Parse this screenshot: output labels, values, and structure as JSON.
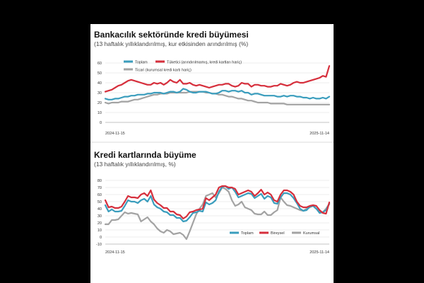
{
  "colors": {
    "background": "#000000",
    "panel": "#ffffff",
    "grid": "#d9d9d9",
    "toplam": "#3a9dbd",
    "tuketici": "#d62f3c",
    "ticari": "#a3a3a3",
    "text": "#111111",
    "muted": "#555555"
  },
  "chart_data": [
    {
      "type": "line",
      "title": "Bankacılık sektöründe kredi büyümesi",
      "subtitle": "(13 haftalık yıllıklandırılmış, kur etkisinden arındırılmış (%)",
      "x_labels": [
        "2024-11-15",
        "2025-11-14"
      ],
      "ylim": [
        0,
        60
      ],
      "yticks": [
        "0",
        "10",
        "20",
        "30",
        "40",
        "50",
        "60"
      ],
      "grid": true,
      "legend": "top-left",
      "series": [
        {
          "name": "Toplam",
          "color": "#3a9dbd",
          "values": [
            24,
            23,
            23,
            24,
            24,
            25,
            26,
            26,
            27,
            27,
            28,
            28,
            28,
            29,
            29,
            30,
            30,
            30,
            29,
            30,
            31,
            31,
            30,
            31,
            34,
            33,
            31,
            30,
            30,
            31,
            31,
            31,
            30,
            29,
            29,
            30,
            32,
            32,
            31,
            32,
            32,
            31,
            32,
            30,
            30,
            28,
            29,
            29,
            28,
            27,
            27,
            27,
            27,
            26,
            26,
            27,
            26,
            27,
            27,
            26,
            26,
            25,
            25,
            24,
            25,
            24,
            24,
            25,
            24,
            26
          ]
        },
        {
          "name": "Tüketici (arındırılmamış, kredi kartları hariç)",
          "color": "#d62f3c",
          "values": [
            31,
            32,
            33,
            35,
            37,
            38,
            40,
            42,
            43,
            42,
            41,
            40,
            39,
            38,
            38,
            40,
            39,
            40,
            38,
            40,
            43,
            41,
            40,
            43,
            39,
            39,
            40,
            38,
            37,
            38,
            37,
            36,
            35,
            36,
            37,
            38,
            38,
            39,
            39,
            37,
            36,
            37,
            40,
            39,
            39,
            36,
            38,
            38,
            37,
            37,
            36,
            36,
            37,
            37,
            39,
            38,
            37,
            38,
            40,
            41,
            40,
            40,
            41,
            42,
            43,
            44,
            45,
            47,
            46,
            57
          ]
        },
        {
          "name": "Ticari (kurumsal kredi kartı hariç)",
          "color": "#a3a3a3",
          "values": [
            20,
            19,
            20,
            20,
            20,
            21,
            21,
            21,
            22,
            23,
            23,
            24,
            25,
            26,
            27,
            28,
            28,
            29,
            29,
            29,
            30,
            30,
            30,
            30,
            30,
            30,
            31,
            31,
            31,
            31,
            31,
            30,
            30,
            29,
            29,
            28,
            28,
            27,
            26,
            26,
            25,
            24,
            24,
            23,
            22,
            22,
            21,
            20,
            20,
            20,
            20,
            19,
            19,
            19,
            19,
            19,
            18,
            18,
            18,
            18,
            18,
            18,
            18,
            18,
            18,
            18,
            18,
            18,
            18,
            18
          ]
        }
      ]
    },
    {
      "type": "line",
      "title": "Kredi kartlarında büyüme",
      "subtitle": "(13 haftalık yıllıklandırılmış, %)",
      "x_labels": [
        "2024-11-15",
        "2025-11-14"
      ],
      "ylim": [
        -10,
        80
      ],
      "yticks": [
        "-10",
        "0",
        "10",
        "20",
        "30",
        "40",
        "50",
        "60",
        "70",
        "80"
      ],
      "grid": true,
      "legend": "bottom-right",
      "series": [
        {
          "name": "Toplam",
          "color": "#3a9dbd",
          "values": [
            45,
            36,
            39,
            36,
            36,
            37,
            44,
            52,
            50,
            50,
            48,
            52,
            54,
            50,
            58,
            46,
            42,
            40,
            36,
            35,
            31,
            31,
            27,
            27,
            22,
            23,
            28,
            34,
            35,
            37,
            36,
            49,
            46,
            48,
            52,
            64,
            71,
            72,
            68,
            70,
            64,
            56,
            58,
            60,
            62,
            61,
            55,
            58,
            61,
            54,
            58,
            56,
            48,
            47,
            56,
            62,
            62,
            60,
            55,
            48,
            40,
            37,
            38,
            43,
            44,
            40,
            34,
            35,
            38,
            47
          ]
        },
        {
          "name": "Bireysel",
          "color": "#d62f3c",
          "values": [
            52,
            42,
            43,
            41,
            41,
            43,
            50,
            58,
            56,
            56,
            55,
            60,
            62,
            58,
            66,
            53,
            48,
            45,
            41,
            41,
            36,
            36,
            32,
            31,
            26,
            29,
            35,
            36,
            38,
            39,
            40,
            55,
            52,
            56,
            60,
            70,
            72,
            72,
            70,
            70,
            68,
            60,
            62,
            64,
            66,
            64,
            58,
            62,
            67,
            60,
            63,
            60,
            52,
            50,
            60,
            66,
            66,
            64,
            60,
            50,
            44,
            42,
            42,
            44,
            45,
            44,
            38,
            34,
            33,
            49
          ]
        },
        {
          "name": "Kurumsal",
          "color": "#a3a3a3",
          "values": [
            18,
            18,
            24,
            24,
            25,
            30,
            35,
            33,
            34,
            33,
            32,
            22,
            25,
            28,
            22,
            18,
            12,
            8,
            6,
            10,
            8,
            4,
            5,
            6,
            3,
            -3,
            8,
            20,
            32,
            40,
            46,
            58,
            60,
            62,
            56,
            62,
            70,
            68,
            64,
            52,
            44,
            46,
            50,
            42,
            40,
            38,
            33,
            32,
            32,
            36,
            31,
            31,
            35,
            38,
            56,
            50,
            45,
            44,
            42,
            40,
            38,
            37,
            40,
            42,
            44,
            40,
            36,
            35,
            40,
            47
          ]
        }
      ]
    }
  ]
}
